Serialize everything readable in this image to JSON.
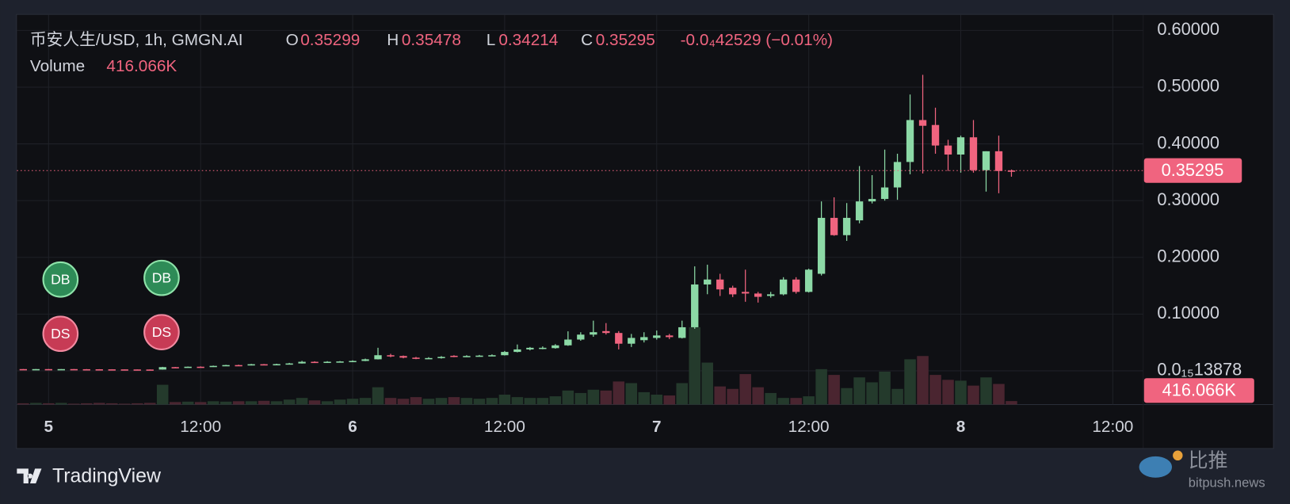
{
  "chart_data": {
    "type": "candlestick",
    "title": "币安人生/USD, 1h, GMGN.AI",
    "ohlc_letters": [
      "O",
      "H",
      "L",
      "C"
    ],
    "change_label": "-0.0₄42529 (−0.01%)",
    "volume_title": "Volume",
    "volume_label": "416.066K",
    "x": [
      -2,
      -1,
      0,
      1,
      2,
      3,
      4,
      5,
      6,
      7,
      8,
      9,
      10,
      11,
      12,
      13,
      14,
      15,
      16,
      17,
      18,
      19,
      20,
      21,
      22,
      23,
      24,
      25,
      26,
      27,
      28,
      29,
      30,
      31,
      32,
      33,
      34,
      35,
      36,
      37,
      38,
      39,
      40,
      41,
      42,
      43,
      44,
      45,
      46,
      47,
      48,
      49,
      50,
      51,
      52,
      53,
      54,
      55,
      56,
      57,
      58,
      59,
      60,
      61,
      62,
      63,
      64,
      65,
      66,
      67,
      68,
      69,
      70,
      71,
      72,
      73,
      74,
      75,
      76
    ],
    "open": [
      0.003,
      0.0029,
      0.003,
      0.0029,
      0.003,
      0.0028,
      0.0027,
      0.0026,
      0.0025,
      0.0024,
      0.0023,
      0.0022,
      0.0065,
      0.0058,
      0.0072,
      0.007,
      0.0087,
      0.0101,
      0.0098,
      0.0116,
      0.011,
      0.0118,
      0.013,
      0.0159,
      0.0152,
      0.016,
      0.0165,
      0.0174,
      0.0203,
      0.0275,
      0.0261,
      0.0232,
      0.0217,
      0.0225,
      0.0265,
      0.025,
      0.0261,
      0.0268,
      0.0275,
      0.0333,
      0.0377,
      0.0395,
      0.04,
      0.0449,
      0.0551,
      0.0638,
      0.07,
      0.0667,
      0.0478,
      0.054,
      0.058,
      0.0623,
      0.058,
      0.0768,
      0.1522,
      0.1609,
      0.1464,
      0.1391,
      0.1362,
      0.132,
      0.1348,
      0.1609,
      0.1391,
      0.171,
      0.2696,
      0.2391,
      0.2652,
      0.2986,
      0.3029,
      0.3232,
      0.3681,
      0.442,
      0.4333,
      0.3971,
      0.3812,
      0.4116,
      0.3536,
      0.387,
      0.35299
    ],
    "high": [
      0.0032,
      0.0031,
      0.0032,
      0.0031,
      0.0031,
      0.003,
      0.0029,
      0.0028,
      0.0027,
      0.0026,
      0.0025,
      0.007,
      0.0068,
      0.0075,
      0.0078,
      0.0092,
      0.0106,
      0.0108,
      0.0122,
      0.012,
      0.0125,
      0.014,
      0.0175,
      0.0168,
      0.017,
      0.0172,
      0.0185,
      0.0215,
      0.0406,
      0.03,
      0.027,
      0.0245,
      0.024,
      0.026,
      0.0275,
      0.0275,
      0.028,
      0.029,
      0.035,
      0.0464,
      0.042,
      0.043,
      0.047,
      0.0696,
      0.068,
      0.0884,
      0.0841,
      0.07,
      0.065,
      0.068,
      0.071,
      0.065,
      0.0884,
      0.1841,
      0.187,
      0.171,
      0.15,
      0.1783,
      0.1391,
      0.1391,
      0.165,
      0.165,
      0.18,
      0.2986,
      0.3058,
      0.2957,
      0.3609,
      0.3449,
      0.3899,
      0.3826,
      0.487,
      0.5217,
      0.4638,
      0.4072,
      0.4145,
      0.442,
      0.387,
      0.4145,
      0.35478
    ],
    "low": [
      0.0028,
      0.0027,
      0.0028,
      0.0028,
      0.0027,
      0.0026,
      0.0025,
      0.0024,
      0.0023,
      0.0022,
      0.0021,
      0.002,
      0.0052,
      0.0055,
      0.0066,
      0.0068,
      0.0083,
      0.0094,
      0.0095,
      0.0105,
      0.0108,
      0.0115,
      0.0128,
      0.0145,
      0.0148,
      0.0155,
      0.016,
      0.017,
      0.02,
      0.024,
      0.022,
      0.0205,
      0.021,
      0.0215,
      0.024,
      0.0245,
      0.025,
      0.026,
      0.027,
      0.0325,
      0.036,
      0.038,
      0.039,
      0.044,
      0.053,
      0.06,
      0.064,
      0.0377,
      0.042,
      0.05,
      0.055,
      0.056,
      0.057,
      0.074,
      0.135,
      0.1319,
      0.13,
      0.1217,
      0.1203,
      0.129,
      0.133,
      0.136,
      0.138,
      0.168,
      0.238,
      0.229,
      0.26,
      0.295,
      0.3,
      0.3014,
      0.3464,
      0.3478,
      0.3826,
      0.3522,
      0.3493,
      0.3493,
      0.3159,
      0.313,
      0.34214
    ],
    "close": [
      0.0029,
      0.003,
      0.0029,
      0.003,
      0.0028,
      0.0027,
      0.0026,
      0.0025,
      0.0024,
      0.0023,
      0.0022,
      0.0065,
      0.0058,
      0.0072,
      0.007,
      0.0087,
      0.0101,
      0.0098,
      0.0116,
      0.011,
      0.0118,
      0.013,
      0.0159,
      0.0152,
      0.016,
      0.0165,
      0.0174,
      0.0203,
      0.0275,
      0.0261,
      0.0232,
      0.0217,
      0.0225,
      0.0245,
      0.025,
      0.0261,
      0.0268,
      0.0275,
      0.0333,
      0.0377,
      0.0406,
      0.0406,
      0.0449,
      0.0551,
      0.0638,
      0.0681,
      0.0667,
      0.0478,
      0.058,
      0.0594,
      0.0623,
      0.0594,
      0.0768,
      0.1522,
      0.1609,
      0.1435,
      0.1348,
      0.1362,
      0.1304,
      0.1348,
      0.1609,
      0.1391,
      0.1783,
      0.2696,
      0.2391,
      0.2696,
      0.2986,
      0.3029,
      0.3232,
      0.3681,
      0.442,
      0.4319,
      0.3971,
      0.3812,
      0.4116,
      0.3536,
      0.387,
      0.3522,
      0.35295
    ],
    "volume": [
      150000,
      200000,
      150000,
      200000,
      100000,
      150000,
      200000,
      150000,
      100000,
      150000,
      200000,
      2400000,
      300000,
      350000,
      300000,
      400000,
      350000,
      400000,
      400000,
      450000,
      400000,
      600000,
      800000,
      500000,
      400000,
      600000,
      700000,
      800000,
      2100000,
      800000,
      700000,
      900000,
      700000,
      800000,
      900000,
      800000,
      700000,
      800000,
      1200000,
      900000,
      800000,
      800000,
      1000000,
      1700000,
      1400000,
      1800000,
      1700000,
      2800000,
      2600000,
      1500000,
      1200000,
      1100000,
      2600000,
      9400000,
      5100000,
      2200000,
      1900000,
      3700000,
      2100000,
      1400000,
      800000,
      800000,
      1000000,
      4300000,
      3600000,
      2000000,
      3300000,
      2700000,
      4000000,
      1900000,
      5500000,
      5900000,
      3600000,
      3000000,
      2900000,
      2300000,
      3300000,
      2500000,
      416066
    ],
    "colors": {
      "up": "#8cd9a6",
      "down": "#f0647f",
      "up_volume": "#243a2c",
      "down_volume": "#4a2530"
    },
    "xlim": [
      -2.5,
      86.4
    ],
    "xticks": [
      {
        "value": 0,
        "label": "5"
      },
      {
        "value": 12,
        "label": "12:00"
      },
      {
        "value": 24,
        "label": "6"
      },
      {
        "value": 36,
        "label": "12:00"
      },
      {
        "value": 48,
        "label": "7"
      },
      {
        "value": 60,
        "label": "12:00"
      },
      {
        "value": 72,
        "label": "8"
      },
      {
        "value": 84,
        "label": "12:00"
      }
    ],
    "ylim": [
      -0.0594,
      0.6275
    ],
    "yticks": [
      {
        "value": 1.3878e-16,
        "label": "0.0₁₅13878"
      },
      {
        "value": 0.1,
        "label": "0.10000"
      },
      {
        "value": 0.2,
        "label": "0.20000"
      },
      {
        "value": 0.3,
        "label": "0.30000"
      },
      {
        "value": 0.4,
        "label": "0.40000"
      },
      {
        "value": 0.5,
        "label": "0.50000"
      },
      {
        "value": 0.6,
        "label": "0.60000"
      }
    ],
    "y2lim": [
      0,
      47400000
    ],
    "grid": true,
    "markers": [
      "DB",
      "DS",
      "DB",
      "DS"
    ]
  },
  "footer": {
    "brand": "TradingView",
    "watermark": "比推",
    "watermark_site": "bitpush.news"
  }
}
